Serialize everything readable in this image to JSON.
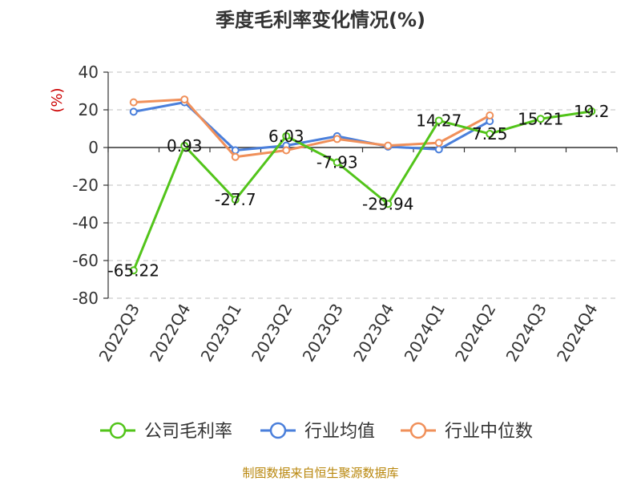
{
  "chart_data": {
    "type": "line",
    "title": "季度毛利率变化情况(%)",
    "ylabel": "(%)",
    "xlabel": "",
    "ylim": [
      -80,
      40
    ],
    "yticks": [
      40,
      20,
      0,
      -20,
      -40,
      -60,
      -80
    ],
    "categories": [
      "2022Q3",
      "2022Q4",
      "2023Q1",
      "2023Q2",
      "2023Q3",
      "2023Q4",
      "2024Q1",
      "2024Q2",
      "2024Q3",
      "2024Q4"
    ],
    "grid": true,
    "legend_position": "bottom",
    "series": [
      {
        "name": "公司毛利率",
        "color": "#52c41a",
        "values": [
          -65.22,
          0.93,
          -27.7,
          6.03,
          -7.93,
          -29.94,
          14.27,
          7.25,
          15.21,
          19.2
        ],
        "labels": [
          "-65.22",
          "0.93",
          "-27.7",
          "6.03",
          "-7.93",
          "-29.94",
          "14.27",
          "7.25",
          "15.21",
          "19.2"
        ]
      },
      {
        "name": "行业均值",
        "color": "#4a7fdb",
        "values": [
          19,
          24,
          -1.5,
          1,
          6,
          0.5,
          -1,
          14,
          null,
          null
        ]
      },
      {
        "name": "行业中位数",
        "color": "#f0905a",
        "values": [
          24,
          25.5,
          -5,
          -1.5,
          4.5,
          1,
          2.5,
          17,
          null,
          null
        ]
      }
    ]
  },
  "source_text": "制图数据来自恒生聚源数据库"
}
